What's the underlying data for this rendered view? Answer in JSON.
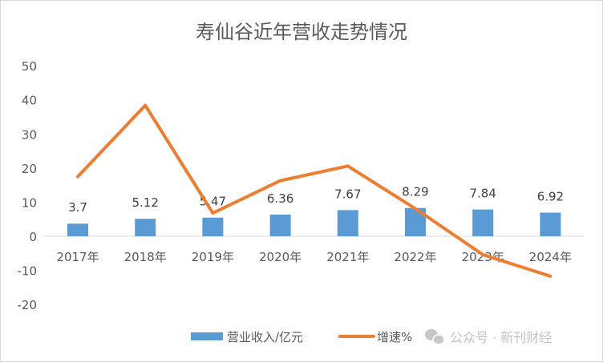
{
  "chart_data": {
    "type": "bar+line",
    "title": "寿仙谷近年营收走势情况",
    "categories": [
      "2017年",
      "2018年",
      "2019年",
      "2020年",
      "2021年",
      "2022年",
      "2023年",
      "2024年"
    ],
    "series": [
      {
        "name": "营业收入/亿元",
        "type": "bar",
        "color": "#5B9BD5",
        "values": [
          3.7,
          5.12,
          5.47,
          6.36,
          7.67,
          8.29,
          7.84,
          6.92
        ],
        "labels": [
          "3.7",
          "5.12",
          "5.47",
          "6.36",
          "7.67",
          "8.29",
          "7.84",
          "6.92"
        ]
      },
      {
        "name": "增速%",
        "type": "line",
        "color": "#ED7D31",
        "values": [
          17.5,
          38.4,
          6.8,
          16.3,
          20.6,
          8.1,
          -5.4,
          -11.7
        ]
      }
    ],
    "ylim": [
      -20,
      50
    ],
    "yticks": [
      "50",
      "40",
      "30",
      "20",
      "10",
      "0",
      "-10",
      "-20"
    ],
    "ytick_values": [
      50,
      40,
      30,
      20,
      10,
      0,
      -10,
      -20
    ],
    "grid": false,
    "legend": "bottom"
  },
  "watermark": "公众号 · 新刊财经"
}
